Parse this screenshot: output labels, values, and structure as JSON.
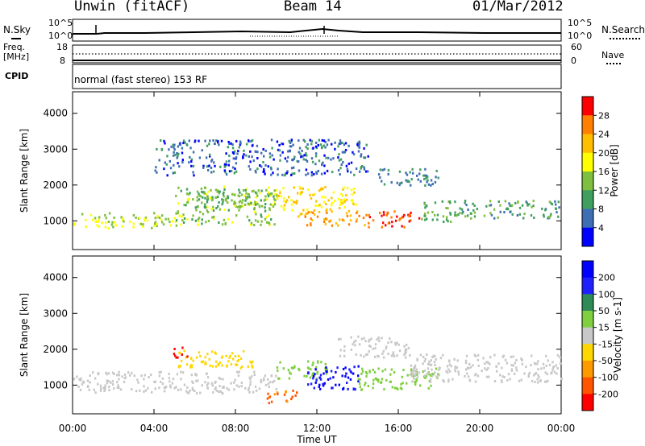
{
  "header": {
    "station": "Unwin (fitACF)",
    "beam": "Beam 14",
    "date": "01/Mar/2012"
  },
  "top_panels": {
    "nsky_label": "N.Sky",
    "nsearch_label": "N.Search",
    "nsky_ticks": [
      "10^5",
      "10^0"
    ],
    "nsearch_ticks": [
      "10^5",
      "10^0"
    ],
    "freq_label": "Freq.",
    "freq_unit": "[MHz]",
    "freq_ticks": [
      "18",
      "8"
    ],
    "nave_label": "Nave",
    "nave_ticks": [
      "60",
      "0"
    ],
    "cpid_label": "CPID",
    "cpid_text": "normal (fast stereo) 153 RF"
  },
  "colors": {
    "power": [
      "#0000ff",
      "#3f6fb3",
      "#3f9f5f",
      "#7fbf3f",
      "#ffff00",
      "#ffbf00",
      "#ff7f00",
      "#ff0000"
    ],
    "velocity": [
      "#0000ff",
      "#2020ff",
      "#2e8b57",
      "#7fcf3f",
      "#c8c8c8",
      "#ffd700",
      "#ff9900",
      "#ff5500",
      "#ff0000"
    ]
  },
  "chart_data": [
    {
      "type": "heatmap",
      "name_panel": "power",
      "xlabel": "Time UT",
      "ylabel": "Slant Range [km]",
      "x_ticks": [
        "00:00",
        "04:00",
        "08:00",
        "12:00",
        "16:00",
        "20:00",
        "00:00"
      ],
      "xlim_hours": [
        0,
        24
      ],
      "ylim": [
        200,
        4600
      ],
      "y_ticks": [
        1000,
        2000,
        3000,
        4000
      ],
      "colorbar_label": "Power [dB]",
      "colorbar_ticks": [
        "28",
        "24",
        "20",
        "16",
        "12",
        "8",
        "4"
      ],
      "colorbar_range": [
        0,
        32
      ],
      "regions": [
        {
          "t0": 0.0,
          "t1": 5.0,
          "r0": 820,
          "r1": 1250,
          "level": 16
        },
        {
          "t0": 5.0,
          "t1": 10.0,
          "r0": 900,
          "r1": 2000,
          "level": 14
        },
        {
          "t0": 6.0,
          "t1": 10.0,
          "r0": 1400,
          "r1": 1900,
          "level": 12
        },
        {
          "t0": 10.0,
          "t1": 14.0,
          "r0": 1300,
          "r1": 2000,
          "level": 20
        },
        {
          "t0": 11.0,
          "t1": 14.5,
          "r0": 900,
          "r1": 1300,
          "level": 24
        },
        {
          "t0": 14.5,
          "t1": 17.0,
          "r0": 850,
          "r1": 1300,
          "level": 28
        },
        {
          "t0": 17.0,
          "t1": 19.0,
          "r0": 1000,
          "r1": 1600,
          "level": 12
        },
        {
          "t0": 19.0,
          "t1": 24.0,
          "r0": 1100,
          "r1": 1600,
          "level": 10
        },
        {
          "t0": 4.0,
          "t1": 14.5,
          "r0": 2300,
          "r1": 3300,
          "level": 6
        },
        {
          "t0": 15.0,
          "t1": 18.0,
          "r0": 2000,
          "r1": 2500,
          "level": 8
        }
      ]
    },
    {
      "type": "heatmap",
      "name_panel": "velocity",
      "xlabel": "Time UT",
      "ylabel": "Slant Range [km]",
      "x_ticks": [
        "00:00",
        "04:00",
        "08:00",
        "12:00",
        "16:00",
        "20:00",
        "00:00"
      ],
      "xlim_hours": [
        0,
        24
      ],
      "ylim": [
        200,
        4600
      ],
      "y_ticks": [
        1000,
        2000,
        3000,
        4000
      ],
      "colorbar_label": "Velocity [m s-1]",
      "colorbar_ticks": [
        "200",
        "100",
        "50",
        "15",
        "-15",
        "-50",
        "-100",
        "-200"
      ],
      "colorbar_range": [
        -250,
        250
      ],
      "regions": [
        {
          "t0": 0.0,
          "t1": 10.0,
          "r0": 800,
          "r1": 1400,
          "level": 0
        },
        {
          "t0": 5.0,
          "t1": 9.0,
          "r0": 1500,
          "r1": 2000,
          "level": -60
        },
        {
          "t0": 4.8,
          "t1": 5.6,
          "r0": 1800,
          "r1": 2100,
          "level": -220
        },
        {
          "t0": 10.0,
          "t1": 12.5,
          "r0": 1200,
          "r1": 1700,
          "level": 60
        },
        {
          "t0": 11.5,
          "t1": 14.0,
          "r0": 900,
          "r1": 1600,
          "level": 200
        },
        {
          "t0": 14.0,
          "t1": 18.0,
          "r0": 900,
          "r1": 1500,
          "level": 60
        },
        {
          "t0": 13.0,
          "t1": 16.5,
          "r0": 1800,
          "r1": 2400,
          "level": 0
        },
        {
          "t0": 16.5,
          "t1": 24.0,
          "r0": 1100,
          "r1": 1900,
          "level": 0
        },
        {
          "t0": 9.5,
          "t1": 11.0,
          "r0": 500,
          "r1": 900,
          "level": -150
        }
      ]
    }
  ]
}
